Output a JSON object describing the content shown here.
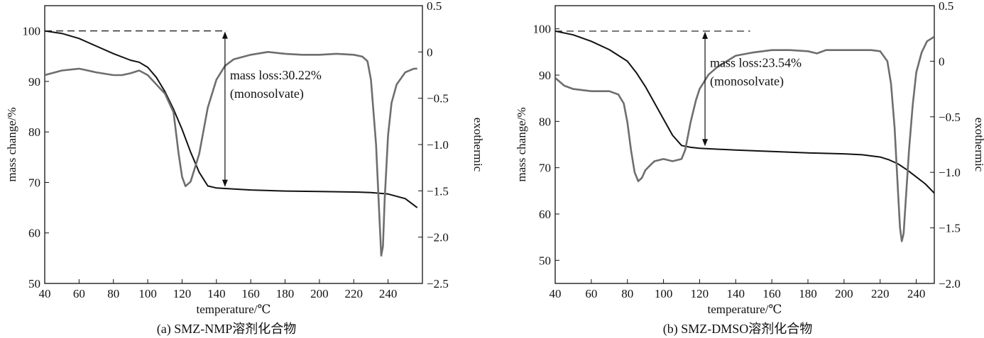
{
  "chart_data": [
    {
      "type": "line",
      "caption": "(a) SMZ-NMP溶剂化合物",
      "xlabel": "temperature/℃",
      "ylabel": "mass change/%",
      "y2label": "exothermic",
      "xlim": [
        40,
        260
      ],
      "ylim": [
        50,
        105
      ],
      "y2lim": [
        -2.5,
        0.5
      ],
      "xticks": [
        40,
        60,
        80,
        100,
        120,
        140,
        160,
        180,
        200,
        220,
        240
      ],
      "yticks": [
        50,
        60,
        70,
        80,
        90,
        100
      ],
      "y2ticks": [
        -2.5,
        -2.0,
        -1.5,
        -1.0,
        -0.5,
        0,
        0.5
      ],
      "grid": false,
      "annotation": {
        "text1": "mass loss:30.22%",
        "text2": "(monosolvate)",
        "from": [
          145,
          100
        ],
        "to": [
          145,
          69
        ],
        "ref_y": 100,
        "ref_x": [
          40,
          146
        ]
      },
      "series": [
        {
          "axis": "left",
          "x": [
            40,
            50,
            60,
            70,
            80,
            90,
            95,
            100,
            105,
            110,
            115,
            120,
            125,
            130,
            135,
            140,
            145,
            160,
            180,
            200,
            220,
            230,
            240,
            250,
            257
          ],
          "y": [
            100,
            99.5,
            98.5,
            97,
            95.5,
            94.2,
            93.8,
            92.8,
            90.8,
            88,
            84.5,
            80.5,
            76,
            72,
            69.3,
            68.9,
            68.8,
            68.5,
            68.3,
            68.2,
            68.1,
            68,
            67.7,
            66.8,
            65
          ]
        },
        {
          "axis": "right",
          "x": [
            40,
            50,
            60,
            70,
            80,
            85,
            90,
            95,
            100,
            105,
            110,
            115,
            118,
            120,
            122,
            125,
            130,
            135,
            140,
            145,
            150,
            160,
            170,
            180,
            190,
            200,
            210,
            220,
            225,
            228,
            230,
            233,
            235,
            236,
            237,
            238,
            240,
            242,
            245,
            250,
            255,
            257
          ],
          "y": [
            -0.25,
            -0.2,
            -0.18,
            -0.22,
            -0.25,
            -0.25,
            -0.23,
            -0.2,
            -0.25,
            -0.35,
            -0.45,
            -0.65,
            -1.1,
            -1.35,
            -1.45,
            -1.4,
            -1.1,
            -0.6,
            -0.3,
            -0.15,
            -0.08,
            -0.03,
            0,
            -0.02,
            -0.03,
            -0.03,
            -0.02,
            -0.03,
            -0.05,
            -0.1,
            -0.3,
            -1.0,
            -1.8,
            -2.2,
            -2.1,
            -1.6,
            -0.9,
            -0.55,
            -0.35,
            -0.22,
            -0.18,
            -0.18
          ]
        }
      ]
    },
    {
      "type": "line",
      "caption": "(b) SMZ-DMSO溶剂化合物",
      "xlabel": "temperature/℃",
      "ylabel": "mass change/%",
      "y2label": "exothermic",
      "xlim": [
        40,
        250
      ],
      "ylim": [
        45,
        105
      ],
      "y2lim": [
        -2.0,
        0.5
      ],
      "xticks": [
        40,
        60,
        80,
        100,
        120,
        140,
        160,
        180,
        200,
        220,
        240
      ],
      "yticks": [
        50,
        60,
        70,
        80,
        90,
        100
      ],
      "y2ticks": [
        -2.0,
        -1.5,
        -1.0,
        -0.5,
        0,
        0.5
      ],
      "grid": false,
      "annotation": {
        "text1": "mass loss:23.54%",
        "text2": "(monosolvate)",
        "from": [
          123,
          99.5
        ],
        "to": [
          123,
          74.5
        ],
        "ref_y": 99.5,
        "ref_x": [
          40,
          148
        ]
      },
      "series": [
        {
          "axis": "left",
          "x": [
            40,
            50,
            60,
            70,
            80,
            85,
            90,
            95,
            100,
            105,
            110,
            115,
            120,
            140,
            160,
            180,
            200,
            210,
            220,
            225,
            230,
            235,
            240,
            245,
            250
          ],
          "y": [
            99.5,
            98.7,
            97.3,
            95.5,
            93,
            90.5,
            87.5,
            84,
            80.5,
            77,
            74.8,
            74.4,
            74.2,
            73.8,
            73.5,
            73.2,
            73,
            72.8,
            72.3,
            71.7,
            70.8,
            69.5,
            68,
            66.5,
            64.5
          ]
        },
        {
          "axis": "right",
          "x": [
            40,
            45,
            50,
            60,
            70,
            75,
            78,
            80,
            82,
            84,
            86,
            88,
            90,
            93,
            95,
            100,
            105,
            110,
            112,
            115,
            118,
            120,
            125,
            130,
            140,
            150,
            160,
            170,
            180,
            185,
            190,
            200,
            210,
            215,
            220,
            224,
            226,
            228,
            230,
            231,
            232,
            233,
            234,
            236,
            238,
            240,
            243,
            246,
            250
          ],
          "y": [
            -0.15,
            -0.22,
            -0.25,
            -0.27,
            -0.27,
            -0.3,
            -0.38,
            -0.55,
            -0.8,
            -1.0,
            -1.08,
            -1.05,
            -0.98,
            -0.93,
            -0.9,
            -0.88,
            -0.9,
            -0.88,
            -0.8,
            -0.55,
            -0.35,
            -0.25,
            -0.12,
            -0.05,
            0.05,
            0.08,
            0.1,
            0.1,
            0.09,
            0.07,
            0.1,
            0.1,
            0.1,
            0.1,
            0.09,
            0.0,
            -0.2,
            -0.6,
            -1.2,
            -1.5,
            -1.62,
            -1.55,
            -1.3,
            -0.8,
            -0.4,
            -0.1,
            0.08,
            0.18,
            0.22
          ]
        }
      ]
    }
  ]
}
